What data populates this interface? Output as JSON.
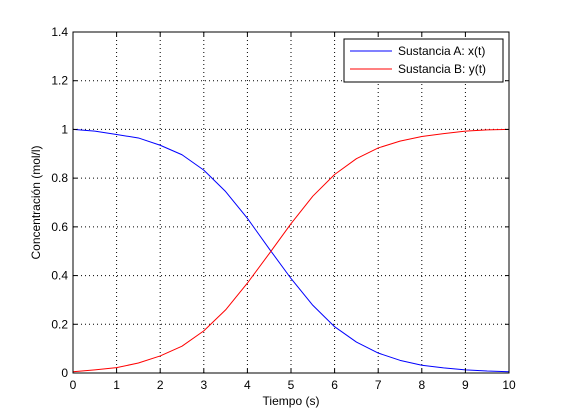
{
  "chart_data": {
    "type": "line",
    "title": "",
    "xlabel": "Tiempo (s)",
    "ylabel": "Concentración (mol/l)",
    "xlim": [
      0,
      10
    ],
    "ylim": [
      0,
      1.4
    ],
    "xticks": [
      0,
      1,
      2,
      3,
      4,
      5,
      6,
      7,
      8,
      9,
      10
    ],
    "yticks": [
      0,
      0.2,
      0.4,
      0.6,
      0.8,
      1,
      1.2,
      1.4
    ],
    "xtick_labels": [
      "0",
      "1",
      "2",
      "3",
      "4",
      "5",
      "6",
      "7",
      "8",
      "9",
      "10"
    ],
    "ytick_labels": [
      "0",
      "0.2",
      "0.4",
      "0.6",
      "0.8",
      "1",
      "1.2",
      "1.4"
    ],
    "grid": true,
    "legend_position": "top-right",
    "x": [
      0,
      0.5,
      1,
      1.5,
      2,
      2.5,
      3,
      3.5,
      4,
      4.5,
      5,
      5.5,
      6,
      6.5,
      7,
      7.5,
      8,
      8.5,
      9,
      9.5,
      10
    ],
    "series": [
      {
        "name": "Sustancia A: x(t)",
        "color": "#0000ff",
        "values": [
          1.0,
          0.993,
          0.979,
          0.965,
          0.935,
          0.896,
          0.833,
          0.745,
          0.635,
          0.51,
          0.388,
          0.278,
          0.19,
          0.127,
          0.082,
          0.052,
          0.032,
          0.021,
          0.013,
          0.008,
          0.005
        ]
      },
      {
        "name": "Sustancia B: y(t)",
        "color": "#ff0000",
        "values": [
          0.005,
          0.013,
          0.022,
          0.041,
          0.07,
          0.11,
          0.173,
          0.259,
          0.369,
          0.49,
          0.613,
          0.726,
          0.815,
          0.88,
          0.924,
          0.952,
          0.971,
          0.983,
          0.993,
          0.998,
          1.0
        ]
      }
    ]
  }
}
